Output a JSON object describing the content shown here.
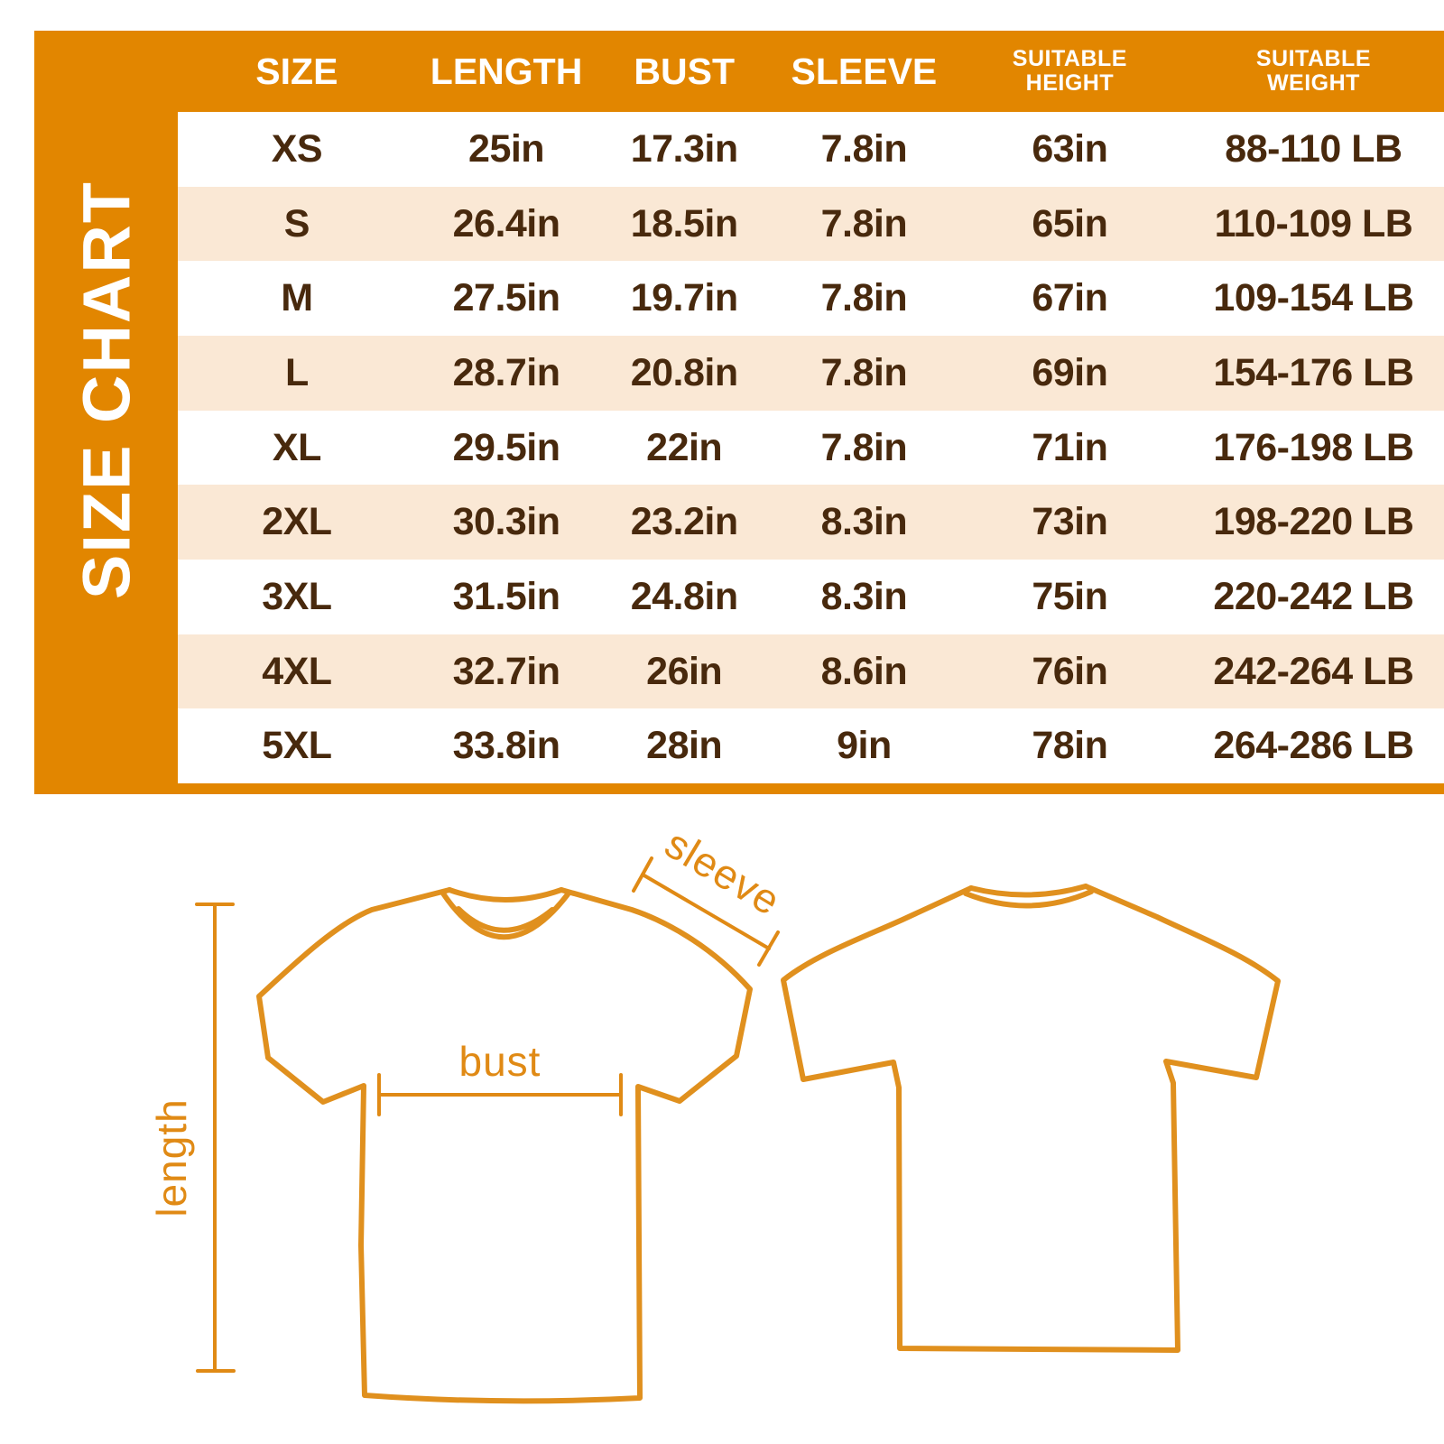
{
  "panel": {
    "title": "SIZE CHART",
    "columns": [
      {
        "label": "SIZE"
      },
      {
        "label": "LENGTH"
      },
      {
        "label": "BUST"
      },
      {
        "label": "SLEEVE"
      },
      {
        "label": "SUITABLE",
        "sub": "HEIGHT"
      },
      {
        "label": "SUITABLE",
        "sub": "WEIGHT"
      }
    ],
    "rows": [
      [
        "XS",
        "25in",
        "17.3in",
        "7.8in",
        "63in",
        "88-110 LB"
      ],
      [
        "S",
        "26.4in",
        "18.5in",
        "7.8in",
        "65in",
        "110-109 LB"
      ],
      [
        "M",
        "27.5in",
        "19.7in",
        "7.8in",
        "67in",
        "109-154 LB"
      ],
      [
        "L",
        "28.7in",
        "20.8in",
        "7.8in",
        "69in",
        "154-176 LB"
      ],
      [
        "XL",
        "29.5in",
        "22in",
        "7.8in",
        "71in",
        "176-198 LB"
      ],
      [
        "2XL",
        "30.3in",
        "23.2in",
        "8.3in",
        "73in",
        "198-220 LB"
      ],
      [
        "3XL",
        "31.5in",
        "24.8in",
        "8.3in",
        "75in",
        "220-242 LB"
      ],
      [
        "4XL",
        "32.7in",
        "26in",
        "8.6in",
        "76in",
        "242-264 LB"
      ],
      [
        "5XL",
        "33.8in",
        "28in",
        "9in",
        "78in",
        "264-286 LB"
      ]
    ]
  },
  "diagram": {
    "labels": {
      "length": "length",
      "bust": "bust",
      "sleeve": "sleeve"
    }
  },
  "colors": {
    "panel_orange": "#E28600",
    "row_alt_peach": "#FAE8D5",
    "value_brown": "#48290D",
    "outline_orange": "#E0901E",
    "label_orange": "#E08A15",
    "header_text": "#FFFFFF"
  },
  "chart_data": {
    "type": "table",
    "title": "SIZE CHART",
    "columns": [
      "SIZE",
      "LENGTH",
      "BUST",
      "SLEEVE",
      "SUITABLE HEIGHT",
      "SUITABLE WEIGHT"
    ],
    "rows": [
      [
        "XS",
        "25in",
        "17.3in",
        "7.8in",
        "63in",
        "88-110 LB"
      ],
      [
        "S",
        "26.4in",
        "18.5in",
        "7.8in",
        "65in",
        "110-109 LB"
      ],
      [
        "M",
        "27.5in",
        "19.7in",
        "7.8in",
        "67in",
        "109-154 LB"
      ],
      [
        "L",
        "28.7in",
        "20.8in",
        "7.8in",
        "69in",
        "154-176 LB"
      ],
      [
        "XL",
        "29.5in",
        "22in",
        "7.8in",
        "71in",
        "176-198 LB"
      ],
      [
        "2XL",
        "30.3in",
        "23.2in",
        "8.3in",
        "73in",
        "198-220 LB"
      ],
      [
        "3XL",
        "31.5in",
        "24.8in",
        "8.3in",
        "75in",
        "220-242 LB"
      ],
      [
        "4XL",
        "32.7in",
        "26in",
        "8.6in",
        "76in",
        "242-264 LB"
      ],
      [
        "5XL",
        "33.8in",
        "28in",
        "9in",
        "78in",
        "264-286 LB"
      ]
    ],
    "annotations": [
      "length",
      "bust",
      "sleeve"
    ]
  }
}
